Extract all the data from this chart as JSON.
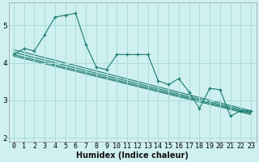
{
  "title": "",
  "xlabel": "Humidex (Indice chaleur)",
  "bg_color": "#cff0f0",
  "grid_color": "#aadddd",
  "line_color": "#1a7a6e",
  "xlim": [
    -0.5,
    23.5
  ],
  "ylim": [
    1.9,
    5.6
  ],
  "xticks": [
    0,
    1,
    2,
    3,
    4,
    5,
    6,
    7,
    8,
    9,
    10,
    11,
    12,
    13,
    14,
    15,
    16,
    17,
    18,
    19,
    20,
    21,
    22,
    23
  ],
  "yticks": [
    2,
    3,
    4,
    5
  ],
  "series1_x": [
    0,
    1,
    2,
    3,
    4,
    5,
    6,
    7,
    8,
    9,
    10,
    11,
    12,
    13,
    14,
    15,
    16,
    17,
    18,
    19,
    20,
    21,
    22,
    23
  ],
  "series1_y": [
    4.22,
    4.38,
    4.32,
    4.75,
    5.22,
    5.27,
    5.32,
    4.48,
    3.88,
    3.82,
    4.22,
    4.22,
    4.22,
    4.22,
    3.52,
    3.42,
    3.58,
    3.22,
    2.78,
    3.32,
    3.28,
    2.58,
    2.72,
    2.72
  ],
  "trend1_x": [
    0,
    23
  ],
  "trend1_y": [
    4.35,
    2.72
  ],
  "trend2_x": [
    0,
    23
  ],
  "trend2_y": [
    4.28,
    2.68
  ],
  "trend3_x": [
    0,
    23
  ],
  "trend3_y": [
    4.22,
    2.65
  ],
  "trend4_x": [
    0,
    23
  ],
  "trend4_y": [
    4.18,
    2.62
  ],
  "xlabel_fontsize": 7,
  "tick_fontsize": 6
}
